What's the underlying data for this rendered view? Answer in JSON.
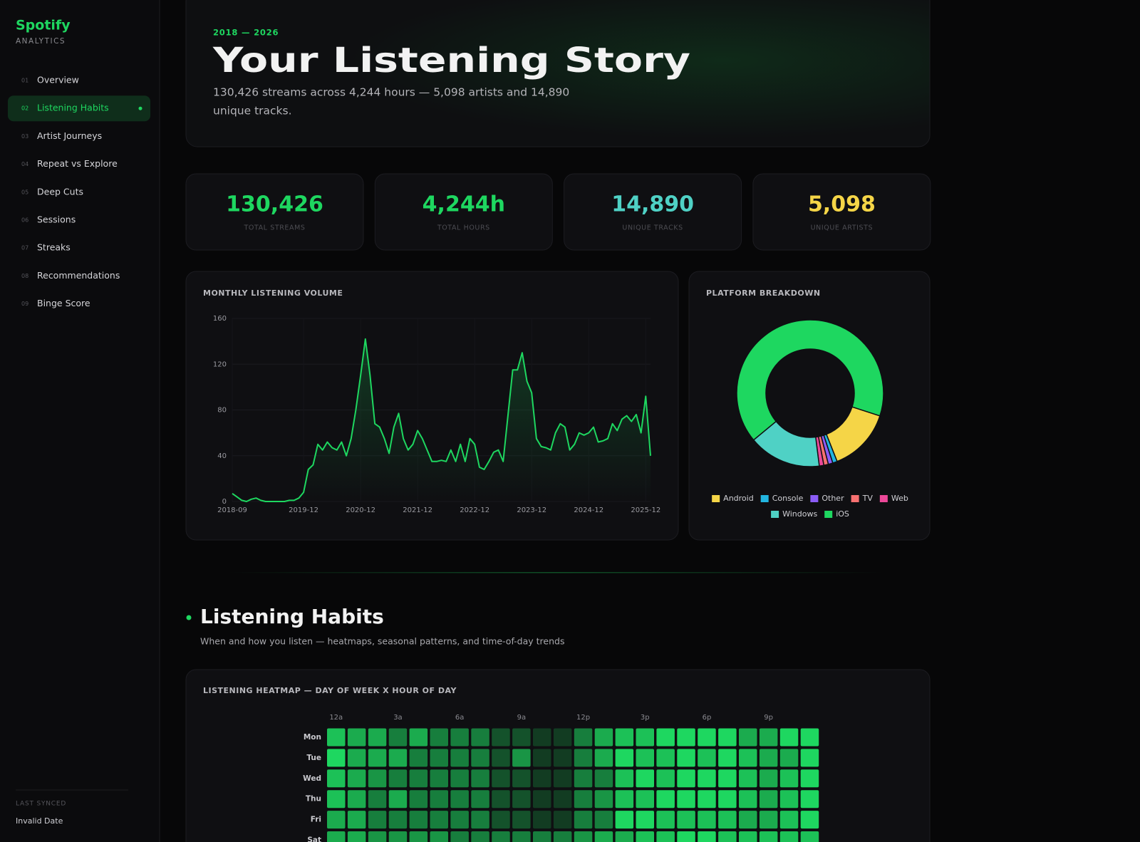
{
  "sidebar": {
    "brand": "Spotify",
    "brand_sub": "ANALYTICS",
    "nav": [
      {
        "num": "01",
        "label": "Overview"
      },
      {
        "num": "02",
        "label": "Listening Habits",
        "active": true
      },
      {
        "num": "03",
        "label": "Artist Journeys"
      },
      {
        "num": "04",
        "label": "Repeat vs Explore"
      },
      {
        "num": "05",
        "label": "Deep Cuts"
      },
      {
        "num": "06",
        "label": "Sessions"
      },
      {
        "num": "07",
        "label": "Streaks"
      },
      {
        "num": "08",
        "label": "Recommendations"
      },
      {
        "num": "09",
        "label": "Binge Score"
      }
    ],
    "last_synced_label": "LAST SYNCED",
    "last_synced_value": "Invalid Date"
  },
  "hero": {
    "eyebrow": "2018 — 2026",
    "title": "Your Listening Story",
    "subtitle_lines": [
      "130,426 streams across 4,244 hours — 5,098 artists and 14,890",
      "unique tracks."
    ]
  },
  "stats": [
    {
      "value": "130,426",
      "label": "TOTAL STREAMS",
      "color": "#1ed760"
    },
    {
      "value": "4,244h",
      "label": "TOTAL HOURS",
      "color": "#1ed760"
    },
    {
      "value": "14,890",
      "label": "UNIQUE TRACKS",
      "color": "#4fd1c5"
    },
    {
      "value": "5,098",
      "label": "UNIQUE ARTISTS",
      "color": "#f5d547"
    }
  ],
  "monthly_chart": {
    "type": "line",
    "title": "MONTHLY LISTENING VOLUME",
    "x": [
      "2018-09",
      "2018-10",
      "2018-11",
      "2018-12",
      "2019-01",
      "2019-02",
      "2019-03",
      "2019-04",
      "2019-05",
      "2019-06",
      "2019-07",
      "2019-08",
      "2019-09",
      "2019-10",
      "2019-11",
      "2019-12",
      "2020-01",
      "2020-02",
      "2020-03",
      "2020-04",
      "2020-05",
      "2020-06",
      "2020-07",
      "2020-08",
      "2020-09",
      "2020-10",
      "2020-11",
      "2020-12",
      "2021-01",
      "2021-02",
      "2021-03",
      "2021-04",
      "2021-05",
      "2021-06",
      "2021-07",
      "2021-08",
      "2021-09",
      "2021-10",
      "2021-11",
      "2021-12",
      "2022-01",
      "2022-02",
      "2022-03",
      "2022-04",
      "2022-05",
      "2022-06",
      "2022-07",
      "2022-08",
      "2022-09",
      "2022-10",
      "2022-11",
      "2022-12",
      "2023-01",
      "2023-02",
      "2023-03",
      "2023-04",
      "2023-05",
      "2023-06",
      "2023-07",
      "2023-08",
      "2023-09",
      "2023-10",
      "2023-11",
      "2023-12",
      "2024-01",
      "2024-02",
      "2024-03",
      "2024-04",
      "2024-05",
      "2024-06",
      "2024-07",
      "2024-08",
      "2024-09",
      "2024-10",
      "2024-11",
      "2024-12",
      "2025-01",
      "2025-02",
      "2025-03",
      "2025-04",
      "2025-05",
      "2025-06",
      "2025-07",
      "2025-08",
      "2025-09",
      "2025-10",
      "2025-11",
      "2025-12",
      "2026-01"
    ],
    "values": [
      7,
      4,
      1,
      0,
      2,
      3,
      1,
      0,
      0,
      0,
      0,
      0,
      1,
      1,
      3,
      8,
      28,
      32,
      50,
      45,
      52,
      47,
      45,
      52,
      40,
      55,
      80,
      110,
      142,
      110,
      68,
      65,
      55,
      42,
      65,
      77,
      55,
      45,
      50,
      62,
      55,
      45,
      35,
      35,
      36,
      35,
      45,
      35,
      50,
      35,
      55,
      50,
      30,
      28,
      35,
      43,
      45,
      35,
      75,
      115,
      115,
      130,
      105,
      95,
      55,
      48,
      47,
      45,
      60,
      68,
      65,
      45,
      50,
      60,
      58,
      60,
      65,
      52,
      53,
      55,
      68,
      62,
      72,
      75,
      70,
      76,
      60,
      92,
      40
    ],
    "color": "#1ed760",
    "ylim": [
      0,
      160
    ],
    "yticks": [
      0,
      40,
      80,
      120,
      160
    ],
    "xticks": [
      "2018-09",
      "2019-12",
      "2020-12",
      "2021-12",
      "2022-12",
      "2023-12",
      "2024-12",
      "2025-12"
    ],
    "grid": true
  },
  "platform_chart": {
    "type": "doughnut",
    "title": "PLATFORM BREAKDOWN",
    "categories": [
      "Android",
      "Console",
      "Other",
      "TV",
      "Web",
      "Windows",
      "iOS"
    ],
    "values": [
      14,
      1,
      1,
      1,
      1,
      16,
      66
    ],
    "colors": [
      "#f5d547",
      "#22b5e0",
      "#8b5cf6",
      "#f87171",
      "#ec4899",
      "#4fd1c5",
      "#1ed760"
    ]
  },
  "section": {
    "title": "Listening Habits",
    "subtitle": "When and how you listen — heatmaps, seasonal patterns, and time-of-day trends"
  },
  "heatmap": {
    "type": "heatmap",
    "title": "LISTENING HEATMAP — DAY OF WEEK X HOUR OF DAY",
    "columns": [
      "12a",
      null,
      null,
      "3a",
      null,
      null,
      "6a",
      null,
      null,
      "9a",
      null,
      null,
      "12p",
      null,
      null,
      "3p",
      null,
      null,
      "6p",
      null,
      null,
      "9p",
      null,
      null
    ],
    "rows": [
      "Mon",
      "Tue",
      "Wed",
      "Thu",
      "Fri",
      "Sat"
    ],
    "values": [
      [
        9,
        8,
        8,
        6,
        8,
        6,
        6,
        6,
        4,
        4,
        3,
        3,
        6,
        8,
        9,
        9,
        10,
        10,
        10,
        10,
        8,
        8,
        10,
        10
      ],
      [
        10,
        8,
        8,
        8,
        6,
        6,
        6,
        6,
        4,
        7,
        3,
        3,
        6,
        8,
        10,
        9,
        9,
        10,
        9,
        10,
        9,
        8,
        8,
        10
      ],
      [
        9,
        8,
        7,
        6,
        6,
        6,
        6,
        6,
        4,
        4,
        3,
        3,
        6,
        6,
        9,
        10,
        9,
        10,
        10,
        10,
        9,
        8,
        9,
        10
      ],
      [
        9,
        8,
        6,
        8,
        6,
        6,
        6,
        6,
        4,
        4,
        3,
        3,
        6,
        7,
        9,
        9,
        10,
        10,
        10,
        10,
        9,
        8,
        9,
        10
      ],
      [
        8,
        8,
        6,
        6,
        6,
        6,
        6,
        6,
        4,
        4,
        3,
        3,
        6,
        6,
        10,
        10,
        9,
        9,
        9,
        9,
        8,
        8,
        9,
        10
      ],
      [
        8,
        8,
        7,
        7,
        7,
        7,
        6,
        6,
        6,
        6,
        6,
        6,
        7,
        8,
        8,
        9,
        9,
        10,
        10,
        9,
        9,
        9,
        9,
        9
      ]
    ],
    "color": "#1ed760"
  }
}
